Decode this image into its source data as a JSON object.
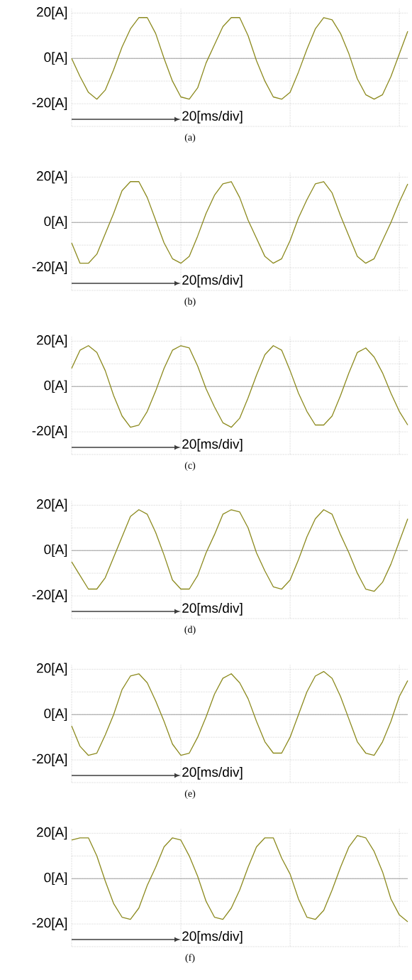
{
  "chart_data": [
    {
      "type": "line",
      "color": "#8c8a1e",
      "ylim": [
        -30,
        22
      ],
      "grid": true,
      "tick_labels": "y",
      "categories": [
        null,
        null,
        null,
        null,
        null,
        null,
        null,
        null,
        null,
        null,
        null,
        null,
        null,
        null,
        null,
        null,
        null,
        null,
        null,
        null,
        null,
        null,
        null,
        null,
        null,
        null,
        null,
        null,
        null,
        null,
        null,
        null,
        null,
        null,
        null,
        null,
        null,
        null,
        null,
        null,
        null
      ],
      "yticks": [
        {
          "value": -30,
          "label": null
        },
        {
          "value": -20,
          "label": "-20[A]"
        },
        {
          "value": -10,
          "label": null
        },
        {
          "value": 0,
          "label": "0[A]"
        },
        {
          "value": 10,
          "label": null
        },
        {
          "value": 20,
          "label": "20[A]"
        }
      ],
      "ref_lines": [
        {
          "axis": "y",
          "value": 0,
          "color": "#a0a0a0"
        }
      ],
      "annotations": [
        "20[ms/div]",
        "(a)"
      ],
      "values": [
        0,
        -8,
        -15,
        -18,
        -14,
        -5,
        5,
        13,
        18,
        18,
        11,
        0,
        -10,
        -17,
        -18,
        -13,
        -2,
        6,
        14,
        18,
        18,
        10,
        -1,
        -10,
        -17,
        -18,
        -15,
        -6,
        4,
        13,
        18,
        17,
        11,
        2,
        -9,
        -16,
        -18,
        -16,
        -8,
        2,
        12
      ]
    },
    {
      "type": "line",
      "color": "#8c8a1e",
      "ylim": [
        -30,
        22
      ],
      "grid": true,
      "tick_labels": "y",
      "categories": [
        null,
        null,
        null,
        null,
        null,
        null,
        null,
        null,
        null,
        null,
        null,
        null,
        null,
        null,
        null,
        null,
        null,
        null,
        null,
        null,
        null,
        null,
        null,
        null,
        null,
        null,
        null,
        null,
        null,
        null,
        null,
        null,
        null,
        null,
        null,
        null,
        null,
        null,
        null,
        null,
        null
      ],
      "yticks": [
        {
          "value": -30,
          "label": null
        },
        {
          "value": -20,
          "label": "-20[A]"
        },
        {
          "value": -10,
          "label": null
        },
        {
          "value": 0,
          "label": "0[A]"
        },
        {
          "value": 10,
          "label": null
        },
        {
          "value": 20,
          "label": "20[A]"
        }
      ],
      "ref_lines": [
        {
          "axis": "y",
          "value": 0,
          "color": "#a0a0a0"
        }
      ],
      "annotations": [
        "20[ms/div]",
        "(b)"
      ],
      "values": [
        -9,
        -18,
        -18,
        -14,
        -5,
        4,
        14,
        18,
        18,
        11,
        1,
        -9,
        -16,
        -18,
        -15,
        -6,
        4,
        12,
        17,
        18,
        11,
        1,
        -7,
        -15,
        -18,
        -16,
        -8,
        2,
        10,
        17,
        18,
        13,
        3,
        -6,
        -15,
        -18,
        -16,
        -8,
        0,
        9,
        17
      ]
    },
    {
      "type": "line",
      "color": "#8c8a1e",
      "ylim": [
        -30,
        22
      ],
      "grid": true,
      "tick_labels": "y",
      "categories": [
        null,
        null,
        null,
        null,
        null,
        null,
        null,
        null,
        null,
        null,
        null,
        null,
        null,
        null,
        null,
        null,
        null,
        null,
        null,
        null,
        null,
        null,
        null,
        null,
        null,
        null,
        null,
        null,
        null,
        null,
        null,
        null,
        null,
        null,
        null,
        null,
        null,
        null,
        null,
        null,
        null
      ],
      "yticks": [
        {
          "value": -30,
          "label": null
        },
        {
          "value": -20,
          "label": "-20[A]"
        },
        {
          "value": -10,
          "label": null
        },
        {
          "value": 0,
          "label": "0[A]"
        },
        {
          "value": 10,
          "label": null
        },
        {
          "value": 20,
          "label": "20[A]"
        }
      ],
      "ref_lines": [
        {
          "axis": "y",
          "value": 0,
          "color": "#a0a0a0"
        }
      ],
      "annotations": [
        "20[ms/div]",
        "(c)"
      ],
      "values": [
        8,
        16,
        18,
        15,
        7,
        -4,
        -13,
        -18,
        -17,
        -11,
        -2,
        8,
        16,
        18,
        17,
        9,
        -1,
        -9,
        -16,
        -18,
        -14,
        -5,
        5,
        14,
        18,
        16,
        7,
        -3,
        -11,
        -17,
        -17,
        -13,
        -4,
        6,
        15,
        17,
        13,
        6,
        -3,
        -11,
        -17
      ]
    },
    {
      "type": "line",
      "color": "#8c8a1e",
      "ylim": [
        -30,
        22
      ],
      "grid": true,
      "tick_labels": "y",
      "categories": [
        null,
        null,
        null,
        null,
        null,
        null,
        null,
        null,
        null,
        null,
        null,
        null,
        null,
        null,
        null,
        null,
        null,
        null,
        null,
        null,
        null,
        null,
        null,
        null,
        null,
        null,
        null,
        null,
        null,
        null,
        null,
        null,
        null,
        null,
        null,
        null,
        null,
        null,
        null,
        null,
        null
      ],
      "yticks": [
        {
          "value": -30,
          "label": null
        },
        {
          "value": -20,
          "label": "-20[A]"
        },
        {
          "value": -10,
          "label": null
        },
        {
          "value": 0,
          "label": "0[A]"
        },
        {
          "value": 10,
          "label": null
        },
        {
          "value": 20,
          "label": "20[A]"
        }
      ],
      "ref_lines": [
        {
          "axis": "y",
          "value": 0,
          "color": "#a0a0a0"
        }
      ],
      "annotations": [
        "20[ms/div]",
        "(d)"
      ],
      "values": [
        -5,
        -11,
        -17,
        -17,
        -12,
        -3,
        6,
        15,
        18,
        16,
        8,
        -2,
        -13,
        -17,
        -17,
        -11,
        -1,
        7,
        16,
        18,
        17,
        10,
        -1,
        -9,
        -16,
        -17,
        -13,
        -4,
        6,
        14,
        18,
        16,
        7,
        -1,
        -10,
        -17,
        -18,
        -14,
        -6,
        4,
        14
      ]
    },
    {
      "type": "line",
      "color": "#8c8a1e",
      "ylim": [
        -30,
        22
      ],
      "grid": true,
      "tick_labels": "y",
      "categories": [
        null,
        null,
        null,
        null,
        null,
        null,
        null,
        null,
        null,
        null,
        null,
        null,
        null,
        null,
        null,
        null,
        null,
        null,
        null,
        null,
        null,
        null,
        null,
        null,
        null,
        null,
        null,
        null,
        null,
        null,
        null,
        null,
        null,
        null,
        null,
        null,
        null,
        null,
        null,
        null,
        null
      ],
      "yticks": [
        {
          "value": -30,
          "label": null
        },
        {
          "value": -20,
          "label": "-20[A]"
        },
        {
          "value": -10,
          "label": null
        },
        {
          "value": 0,
          "label": "0[A]"
        },
        {
          "value": 10,
          "label": null
        },
        {
          "value": 20,
          "label": "20[A]"
        }
      ],
      "ref_lines": [
        {
          "axis": "y",
          "value": 0,
          "color": "#a0a0a0"
        }
      ],
      "annotations": [
        "20[ms/div]",
        "(e)"
      ],
      "values": [
        -5,
        -14,
        -18,
        -17,
        -9,
        0,
        11,
        17,
        18,
        14,
        6,
        -3,
        -13,
        -18,
        -17,
        -10,
        -1,
        9,
        16,
        18,
        14,
        7,
        -3,
        -12,
        -17,
        -17,
        -10,
        0,
        10,
        17,
        19,
        16,
        8,
        -2,
        -12,
        -17,
        -18,
        -12,
        -3,
        8,
        15
      ]
    },
    {
      "type": "line",
      "color": "#8c8a1e",
      "ylim": [
        -30,
        22
      ],
      "grid": true,
      "tick_labels": "y",
      "categories": [
        null,
        null,
        null,
        null,
        null,
        null,
        null,
        null,
        null,
        null,
        null,
        null,
        null,
        null,
        null,
        null,
        null,
        null,
        null,
        null,
        null,
        null,
        null,
        null,
        null,
        null,
        null,
        null,
        null,
        null,
        null,
        null,
        null,
        null,
        null,
        null,
        null,
        null,
        null,
        null,
        null
      ],
      "yticks": [
        {
          "value": -30,
          "label": null
        },
        {
          "value": -20,
          "label": "-20[A]"
        },
        {
          "value": -10,
          "label": null
        },
        {
          "value": 0,
          "label": "0[A]"
        },
        {
          "value": 10,
          "label": null
        },
        {
          "value": 20,
          "label": "20[A]"
        }
      ],
      "ref_lines": [
        {
          "axis": "y",
          "value": 0,
          "color": "#a0a0a0"
        }
      ],
      "annotations": [
        "20[ms/div]",
        "(f)"
      ],
      "values": [
        17,
        18,
        18,
        10,
        -1,
        -11,
        -17,
        -18,
        -13,
        -3,
        5,
        14,
        18,
        17,
        10,
        1,
        -10,
        -17,
        -18,
        -13,
        -5,
        5,
        14,
        18,
        18,
        9,
        2,
        -9,
        -17,
        -18,
        -14,
        -5,
        5,
        14,
        19,
        18,
        12,
        3,
        -9,
        -16,
        -19
      ]
    }
  ]
}
